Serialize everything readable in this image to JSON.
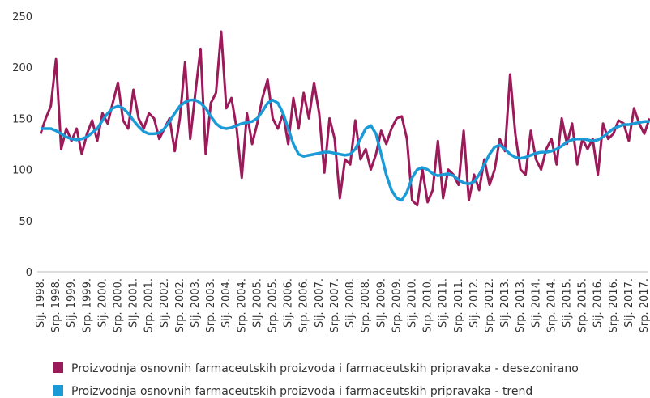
{
  "chart_data": {
    "type": "line",
    "categories": [
      "Sij. 1998.",
      null,
      null,
      "Srp. 1998.",
      null,
      null,
      "Sij. 1999.",
      null,
      null,
      "Srp. 1999.",
      null,
      null,
      "Sij. 2000.",
      null,
      null,
      "Srp. 2000.",
      null,
      null,
      "Sij. 2001.",
      null,
      null,
      "Srp. 2001.",
      null,
      null,
      "Sij. 2002.",
      null,
      null,
      "Srp. 2002.",
      null,
      null,
      "Sij. 2003.",
      null,
      null,
      "Srp. 2003.",
      null,
      null,
      "Sij. 2004.",
      null,
      null,
      "Srp. 2004.",
      null,
      null,
      "Sij. 2005.",
      null,
      null,
      "Srp. 2005.",
      null,
      null,
      "Sij. 2006.",
      null,
      null,
      "Srp. 2006.",
      null,
      null,
      "Sij. 2007.",
      null,
      null,
      "Srp. 2007.",
      null,
      null,
      "Sij. 2008.",
      null,
      null,
      "Srp. 2008.",
      null,
      null,
      "Sij. 2009.",
      null,
      null,
      "Srp. 2009.",
      null,
      null,
      "Sij. 2010.",
      null,
      null,
      "Srp. 2010.",
      null,
      null,
      "Sij. 2011.",
      null,
      null,
      "Srp. 2011.",
      null,
      null,
      "Sij. 2012.",
      null,
      null,
      "Srp. 2012.",
      null,
      null,
      "Sij. 2013.",
      null,
      null,
      "Srp. 2013.",
      null,
      null,
      "Sij. 2014.",
      null,
      null,
      "Srp. 2014.",
      null,
      null,
      "Sij. 2015.",
      null,
      null,
      "Srp. 2015.",
      null,
      null,
      "Sij. 2016.",
      null,
      null,
      "Srp. 2016.",
      null,
      null,
      "Sij. 2017.",
      null,
      null,
      "Srp. 2017.",
      null
    ],
    "series": [
      {
        "name": "Proizvodnja osnovnih farmaceutskih proizvoda i  farmaceutskih pripravaka - desezonirano",
        "color": "#9b1a5a",
        "values": [
          135,
          150,
          162,
          208,
          120,
          140,
          128,
          140,
          115,
          135,
          148,
          128,
          155,
          145,
          165,
          185,
          148,
          140,
          178,
          150,
          140,
          155,
          150,
          130,
          140,
          150,
          118,
          150,
          205,
          130,
          175,
          218,
          115,
          165,
          175,
          235,
          160,
          170,
          140,
          92,
          155,
          125,
          145,
          170,
          188,
          150,
          140,
          155,
          125,
          170,
          140,
          175,
          150,
          185,
          155,
          97,
          150,
          130,
          72,
          110,
          105,
          148,
          110,
          120,
          100,
          115,
          138,
          125,
          140,
          150,
          152,
          130,
          70,
          65,
          100,
          68,
          80,
          128,
          72,
          100,
          95,
          85,
          138,
          70,
          95,
          80,
          110,
          85,
          100,
          130,
          118,
          193,
          135,
          100,
          95,
          138,
          110,
          100,
          120,
          130,
          105,
          150,
          125,
          145,
          105,
          130,
          120,
          130,
          95,
          145,
          130,
          135,
          148,
          145,
          128,
          160,
          145,
          135,
          150
        ]
      },
      {
        "name": "Proizvodnja osnovnih farmaceutskih proizvoda i  farmaceutskih pripravaka - trend",
        "color": "#1a9ad6",
        "values": [
          140,
          140,
          140,
          138,
          135,
          132,
          130,
          129,
          130,
          132,
          136,
          140,
          148,
          155,
          160,
          162,
          160,
          155,
          148,
          142,
          137,
          135,
          135,
          136,
          140,
          147,
          155,
          162,
          166,
          168,
          168,
          165,
          160,
          152,
          145,
          141,
          140,
          141,
          143,
          145,
          146,
          147,
          150,
          157,
          165,
          168,
          165,
          155,
          140,
          125,
          115,
          113,
          114,
          115,
          116,
          117,
          117,
          116,
          115,
          114,
          115,
          120,
          130,
          140,
          143,
          135,
          115,
          95,
          80,
          72,
          70,
          78,
          92,
          100,
          102,
          100,
          96,
          94,
          95,
          96,
          94,
          90,
          87,
          86,
          88,
          95,
          105,
          115,
          122,
          124,
          120,
          115,
          112,
          111,
          112,
          114,
          116,
          117,
          117,
          118,
          120,
          123,
          127,
          129,
          130,
          130,
          129,
          128,
          129,
          132,
          136,
          140,
          142,
          144,
          144,
          145,
          146,
          147,
          147
        ]
      }
    ],
    "ylim": [
      0,
      250
    ],
    "yticks": [
      0,
      50,
      100,
      150,
      200,
      250
    ],
    "grid": false
  }
}
